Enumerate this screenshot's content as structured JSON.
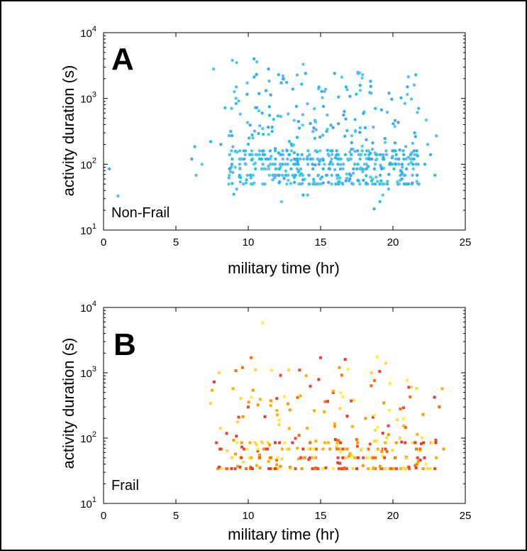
{
  "chart_data": [
    {
      "type": "scatter",
      "panel_letter": "A",
      "annotation": "Non-Frail",
      "xlabel": "military time (hr)",
      "ylabel": "activity duration (s)",
      "xlim": [
        0,
        25
      ],
      "ylim": [
        10,
        10000
      ],
      "yscale": "log",
      "xticks": [
        "0",
        "5",
        "10",
        "15",
        "20",
        "25"
      ],
      "yticks": [
        {
          "base": "10",
          "exp": "1"
        },
        {
          "base": "10",
          "exp": "2"
        },
        {
          "base": "10",
          "exp": "3"
        },
        {
          "base": "10",
          "exp": "4"
        }
      ],
      "grid": false,
      "marker": "dot",
      "colors": [
        "#29b6f6",
        "#4fc3f7",
        "#42a5f5",
        "#26c6da",
        "#64b5f6",
        "#4dd0e1"
      ],
      "points": [
        [
          0.4,
          85
        ],
        [
          1.0,
          33
        ],
        [
          6.1,
          120
        ],
        [
          6.3,
          185
        ],
        [
          6.4,
          68
        ],
        [
          6.8,
          100
        ],
        [
          7.4,
          220
        ],
        [
          7.6,
          2800
        ],
        [
          8.1,
          200
        ],
        [
          8.4,
          720
        ],
        [
          8.9,
          3800
        ],
        [
          9.2,
          3500
        ],
        [
          10.4,
          4000
        ],
        [
          10.6,
          3600
        ],
        [
          11.4,
          2800
        ],
        [
          12.1,
          2300
        ],
        [
          12.4,
          2200
        ],
        [
          13.8,
          3300
        ],
        [
          17.6,
          2400
        ],
        [
          17.9,
          2300
        ],
        [
          21.0,
          1500
        ],
        [
          9.0,
          35
        ],
        [
          9.2,
          42
        ],
        [
          12.3,
          27
        ],
        [
          13.8,
          34
        ],
        [
          14.1,
          34
        ],
        [
          18.7,
          21
        ],
        [
          19.1,
          27
        ],
        [
          19.7,
          42
        ],
        [
          19.3,
          34
        ],
        [
          22.2,
          100
        ],
        [
          22.4,
          200
        ],
        [
          22.6,
          140
        ],
        [
          22.9,
          68
        ],
        [
          23.0,
          270
        ],
        [
          22.3,
          470
        ],
        [
          21.5,
          300
        ],
        [
          21.3,
          150
        ]
      ],
      "dense": {
        "x_range": [
          8.6,
          21.8
        ],
        "duration_levels": [
          50,
          68,
          85,
          100,
          120,
          140,
          160
        ],
        "count": 560,
        "y_upper": 2500,
        "seed": 12345
      }
    },
    {
      "type": "scatter",
      "panel_letter": "B",
      "annotation": "Frail",
      "xlabel": "military time (hr)",
      "ylabel": "activity duration (s)",
      "xlim": [
        0,
        25
      ],
      "ylim": [
        10,
        10000
      ],
      "yscale": "log",
      "xticks": [
        "0",
        "5",
        "10",
        "15",
        "20",
        "25"
      ],
      "yticks": [
        {
          "base": "10",
          "exp": "1"
        },
        {
          "base": "10",
          "exp": "2"
        },
        {
          "base": "10",
          "exp": "3"
        },
        {
          "base": "10",
          "exp": "4"
        }
      ],
      "grid": false,
      "marker": "square",
      "colors": [
        "#ffee33",
        "#ffd740",
        "#ffb300",
        "#ff9800",
        "#ff6d00",
        "#f44336",
        "#e53935"
      ],
      "points": [
        [
          11.0,
          5800
        ],
        [
          7.4,
          340
        ],
        [
          7.5,
          540
        ],
        [
          7.9,
          34
        ],
        [
          10.2,
          1700
        ],
        [
          15.0,
          1700
        ],
        [
          16.7,
          1600
        ],
        [
          18.9,
          1750
        ],
        [
          19.5,
          1400
        ],
        [
          23.4,
          570
        ],
        [
          23.5,
          68
        ],
        [
          23.2,
          300
        ],
        [
          22.9,
          34
        ],
        [
          21.1,
          600
        ],
        [
          20.6,
          34
        ],
        [
          22.4,
          34
        ],
        [
          12.0,
          34
        ],
        [
          13.7,
          34
        ],
        [
          14.5,
          34
        ],
        [
          16.8,
          34
        ],
        [
          17.5,
          34
        ],
        [
          11.6,
          1100
        ],
        [
          12.8,
          1100
        ],
        [
          14.0,
          900
        ],
        [
          16.3,
          1200
        ],
        [
          9.6,
          1200
        ]
      ],
      "dense": {
        "x_range": [
          7.6,
          23.0
        ],
        "duration_levels": [
          34,
          50,
          68,
          85
        ],
        "count": 300,
        "y_upper": 1200,
        "seed": 777
      }
    }
  ]
}
